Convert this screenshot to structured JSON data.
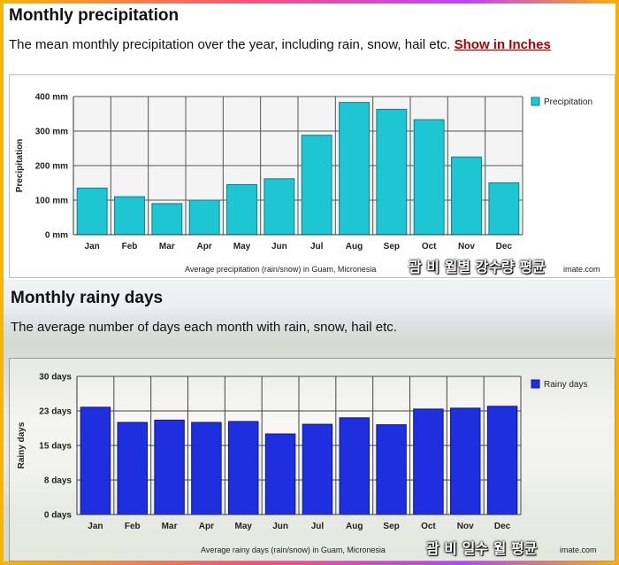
{
  "precip_section": {
    "title": "Monthly precipitation",
    "description": "The mean monthly precipitation over the year, including rain, snow, hail etc.",
    "link_label": "Show in Inches",
    "overlay_caption": "괌 비 월별 강수량 평균",
    "watermark_tail": "imate.com"
  },
  "rainy_section": {
    "title": "Monthly rainy days",
    "description": "The average number of days each month with rain, snow, hail etc.",
    "overlay_caption": "괌 비 일수 월 평균",
    "watermark_tail": "imate.com"
  },
  "colors": {
    "precip_bar": "#1ec6d4",
    "precip_bar_edge": "#0a7f8a",
    "rainy_bar": "#1e2fe0",
    "rainy_bar_edge": "#0b1690",
    "grid": "#777777",
    "link": "#b00000"
  },
  "chart_data": [
    {
      "type": "bar",
      "title": "",
      "caption": "Average precipitation (rain/snow) in Guam, Micronesia",
      "xlabel": "",
      "ylabel": "Precipitation",
      "categories": [
        "Jan",
        "Feb",
        "Mar",
        "Apr",
        "May",
        "Jun",
        "Jul",
        "Aug",
        "Sep",
        "Oct",
        "Nov",
        "Dec"
      ],
      "series": [
        {
          "name": "Precipitation",
          "values": [
            135,
            110,
            90,
            100,
            145,
            162,
            288,
            383,
            363,
            333,
            225,
            150
          ]
        }
      ],
      "ylim": [
        0,
        400
      ],
      "yticks": [
        "0 mm",
        "100 mm",
        "200 mm",
        "300 mm",
        "400 mm"
      ],
      "ytick_values": [
        0,
        100,
        200,
        300,
        400
      ],
      "grid": true,
      "legend": "top-right"
    },
    {
      "type": "bar",
      "title": "",
      "caption": "Average rainy days (rain/snow) in Guam, Micronesia",
      "xlabel": "",
      "ylabel": "Rainy days",
      "categories": [
        "Jan",
        "Feb",
        "Mar",
        "Apr",
        "May",
        "Jun",
        "Jul",
        "Aug",
        "Sep",
        "Oct",
        "Nov",
        "Dec"
      ],
      "series": [
        {
          "name": "Rainy days",
          "values": [
            23.3,
            20,
            20.5,
            20,
            20.2,
            17.5,
            19.6,
            21,
            19.5,
            22.9,
            23.1,
            23.5
          ]
        }
      ],
      "ylim": [
        0,
        30
      ],
      "yticks": [
        "0 days",
        "8 days",
        "15 days",
        "23 days",
        "30 days"
      ],
      "ytick_values": [
        0,
        7.5,
        15,
        22.5,
        30
      ],
      "grid": true,
      "legend": "top-right"
    }
  ]
}
